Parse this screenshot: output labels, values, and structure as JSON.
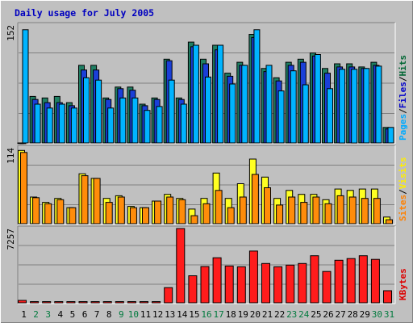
{
  "chart_data": {
    "type": "bar",
    "title": "Daily usage for July 2005",
    "days": [
      "1",
      "2",
      "3",
      "4",
      "5",
      "6",
      "7",
      "8",
      "9",
      "10",
      "11",
      "12",
      "13",
      "14",
      "15",
      "16",
      "17",
      "18",
      "19",
      "20",
      "21",
      "22",
      "23",
      "24",
      "25",
      "26",
      "27",
      "28",
      "29",
      "30",
      "31"
    ],
    "weekend_days": [
      "2",
      "3",
      "9",
      "10",
      "16",
      "17",
      "23",
      "24",
      "30",
      "31"
    ],
    "panels": [
      {
        "name": "pages-files-hits",
        "max_label": "152",
        "ylim": [
          0,
          152
        ],
        "legend": [
          "Pages",
          "/",
          "Files",
          "/",
          "Hits"
        ],
        "legend_colors": [
          "#00aaff",
          "#000000",
          "#0000cc",
          "#000000",
          "#006633"
        ],
        "series": [
          {
            "name": "Hits",
            "color": "#1f7f63",
            "values": [
              0,
              60,
              58,
              60,
              52,
              100,
              100,
              58,
              72,
              72,
              50,
              58,
              108,
              58,
              130,
              108,
              126,
              90,
              104,
              140,
              96,
              84,
              104,
              108,
              116,
              96,
              102,
              102,
              98,
              104,
              20
            ]
          },
          {
            "name": "Files",
            "color": "#1a3fd8",
            "values": [
              0,
              56,
              52,
              52,
              48,
              94,
              94,
              56,
              70,
              68,
              48,
              56,
              106,
              56,
              124,
              102,
              120,
              86,
              100,
              136,
              92,
              80,
              100,
              104,
              112,
              90,
              98,
              98,
              96,
              100,
              18
            ]
          },
          {
            "name": "Pages",
            "color": "#00b4ff",
            "values": [
              146,
              50,
              45,
              50,
              45,
              84,
              81,
              45,
              58,
              58,
              42,
              47,
              81,
              50,
              126,
              85,
              126,
              76,
              100,
              146,
              100,
              67,
              93,
              75,
              114,
              70,
              95,
              95,
              96,
              99,
              20
            ]
          }
        ]
      },
      {
        "name": "sites-visits",
        "max_label": "114",
        "ylim": [
          0,
          114
        ],
        "legend": [
          "Sites",
          "/",
          "Visits"
        ],
        "legend_colors": [
          "#ff8000",
          "#000000",
          "#ffee00"
        ],
        "series": [
          {
            "name": "Visits",
            "color": "#ffff22",
            "values": [
              110,
              40,
              32,
              38,
              24,
              75,
              68,
              38,
              42,
              26,
              24,
              34,
              44,
              38,
              22,
              38,
              76,
              38,
              60,
              97,
              70,
              38,
              50,
              44,
              44,
              36,
              52,
              50,
              52,
              52,
              10
            ]
          },
          {
            "name": "Sites",
            "color": "#ff8c0a",
            "values": [
              107,
              39,
              30,
              36,
              24,
              72,
              68,
              32,
              40,
              24,
              24,
              34,
              40,
              36,
              12,
              30,
              50,
              24,
              40,
              74,
              54,
              28,
              40,
              32,
              40,
              30,
              42,
              40,
              38,
              38,
              6
            ]
          }
        ]
      },
      {
        "name": "kbytes",
        "max_label": "7257",
        "ylim": [
          0,
          7257
        ],
        "legend": [
          "KBytes"
        ],
        "legend_colors": [
          "#dd0000"
        ],
        "series": [
          {
            "name": "KBytes",
            "color": "#ff1c1c",
            "values": [
              240,
              120,
              120,
              120,
              120,
              120,
              120,
              120,
              120,
              120,
              120,
              120,
              1480,
              7257,
              2640,
              3540,
              4400,
              3600,
              3520,
              5060,
              3840,
              3520,
              3680,
              3840,
              4600,
              3060,
              4160,
              4320,
              4600,
              4240,
              1180
            ]
          }
        ]
      }
    ]
  }
}
